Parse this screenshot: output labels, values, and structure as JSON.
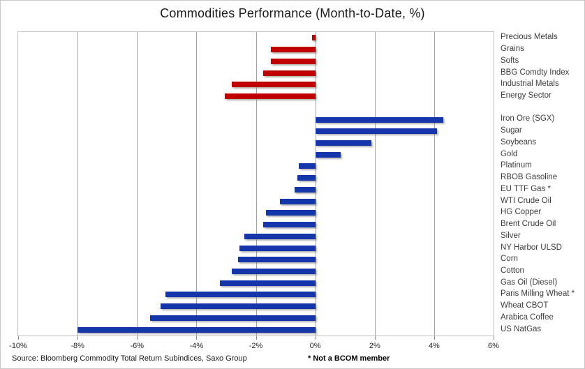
{
  "title": "Commodities Performance (Month-to-Date, %)",
  "source": "Source: Bloomberg Commodity Total Return Subindices, Saxo Group",
  "footnote": "* Not a BCOM member",
  "colors": {
    "sector_group": "#c00000",
    "commodity_group": "#1535ab",
    "gridline": "#a3a3a3",
    "plot_border": "#bfbfbf",
    "label_text": "#3d3d3d"
  },
  "chart_data": {
    "type": "bar",
    "orientation": "horizontal",
    "title": "Commodities Performance (Month-to-Date, %)",
    "xlabel": "",
    "ylabel": "",
    "xlim": [
      -10,
      6
    ],
    "x_tick_step": 2,
    "x_tick_labels": [
      "-10%",
      "-8%",
      "-6%",
      "-4%",
      "-2%",
      "0%",
      "2%",
      "4%",
      "6%"
    ],
    "grid": "vertical",
    "legend": "none",
    "groups": [
      {
        "name": "sector-indices",
        "color": "#c00000",
        "items": [
          {
            "label": "Precious Metals",
            "value": -0.1
          },
          {
            "label": "Grains",
            "value": -1.5
          },
          {
            "label": "Softs",
            "value": -1.5
          },
          {
            "label": "BBG Comdty Index",
            "value": -1.75
          },
          {
            "label": "Industrial Metals",
            "value": -2.8
          },
          {
            "label": "Energy Sector",
            "value": -3.05
          }
        ]
      },
      {
        "name": "individual-commodities",
        "color": "#1535ab",
        "items": [
          {
            "label": "Iron Ore (SGX)",
            "value": 4.3
          },
          {
            "label": "Sugar",
            "value": 4.1
          },
          {
            "label": "Soybeans",
            "value": 1.9
          },
          {
            "label": "Gold",
            "value": 0.85
          },
          {
            "label": "Platinum",
            "value": -0.55
          },
          {
            "label": "RBOB Gasoline",
            "value": -0.6
          },
          {
            "label": "EU TTF Gas *",
            "value": -0.7
          },
          {
            "label": "WTI Crude Oil",
            "value": -1.2
          },
          {
            "label": "HG Copper",
            "value": -1.65
          },
          {
            "label": "Brent Crude Oil",
            "value": -1.75
          },
          {
            "label": "Silver",
            "value": -2.4
          },
          {
            "label": "NY Harbor ULSD",
            "value": -2.55
          },
          {
            "label": "Corn",
            "value": -2.6
          },
          {
            "label": "Cotton",
            "value": -2.8
          },
          {
            "label": "Gas Oil (Diesel)",
            "value": -3.2
          },
          {
            "label": "Paris Milling Wheat *",
            "value": -5.05
          },
          {
            "label": "Wheat CBOT",
            "value": -5.2
          },
          {
            "label": "Arabica Coffee",
            "value": -5.55
          },
          {
            "label": "US NatGas",
            "value": -8.0
          }
        ]
      }
    ]
  }
}
